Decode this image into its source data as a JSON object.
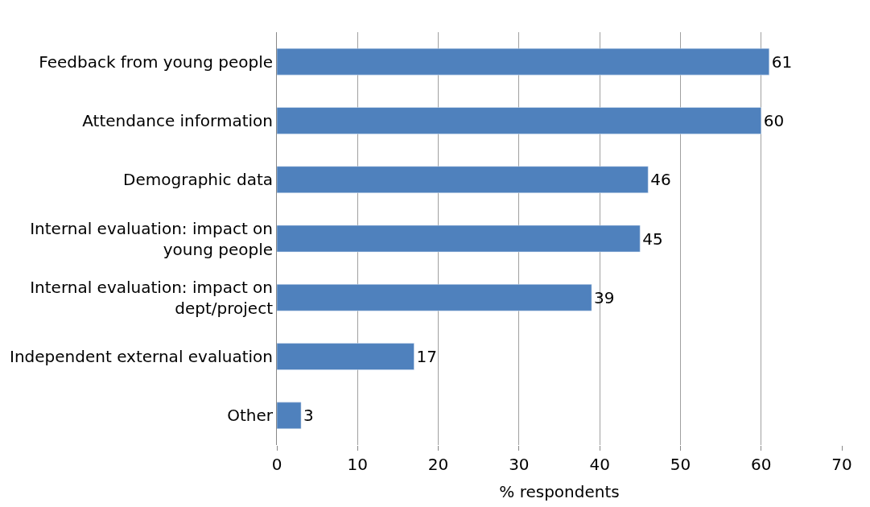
{
  "chart_data": {
    "type": "bar",
    "orientation": "horizontal",
    "categories": [
      "Feedback from young people",
      "Attendance information",
      "Demographic data",
      "Internal evaluation: impact on young people",
      "Internal evaluation: impact on dept/project",
      "Independent external evaluation",
      "Other"
    ],
    "values": [
      61,
      60,
      46,
      45,
      39,
      17,
      3
    ],
    "color": "#4f81bd",
    "xlabel": "% respondents",
    "xlim": [
      0,
      70
    ],
    "xticks": [
      0,
      10,
      20,
      30,
      40,
      50,
      60,
      70
    ],
    "grid": "x",
    "data_labels": true
  }
}
